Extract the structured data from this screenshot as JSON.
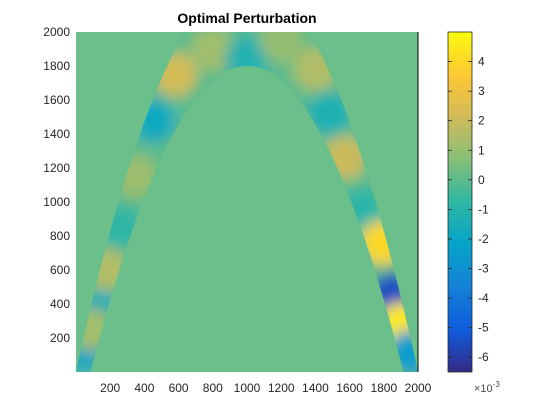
{
  "chart_data": {
    "type": "heatmap",
    "title": "Optimal Perturbation",
    "xlabel": "",
    "ylabel": "",
    "xlim": [
      0,
      2000
    ],
    "ylim": [
      0,
      2000
    ],
    "x_ticks": [
      200,
      400,
      600,
      800,
      1000,
      1200,
      1400,
      1600,
      1800,
      2000
    ],
    "y_ticks": [
      200,
      400,
      600,
      800,
      1000,
      1200,
      1400,
      1600,
      1800,
      2000
    ],
    "grid": false,
    "background_value": 0,
    "band": {
      "shape": "inverted parabola",
      "outer_edge_peak": [
        1000,
        2300
      ],
      "outer_edge_base": [
        [
          0,
          0
        ],
        [
          2000,
          0
        ]
      ],
      "inner_edge_peak": [
        1000,
        1800
      ],
      "inner_edge_base": [
        [
          85,
          0
        ],
        [
          1915,
          0
        ]
      ]
    },
    "blobs": [
      {
        "x": 40,
        "y": 130,
        "value": -2.0
      },
      {
        "x": 135,
        "y": 380,
        "value": -1.5
      },
      {
        "x": 90,
        "y": 250,
        "value": 1.2
      },
      {
        "x": 185,
        "y": 600,
        "value": 1.5
      },
      {
        "x": 255,
        "y": 850,
        "value": -0.8
      },
      {
        "x": 350,
        "y": 1150,
        "value": 1.1
      },
      {
        "x": 455,
        "y": 1480,
        "value": -1.8
      },
      {
        "x": 580,
        "y": 1750,
        "value": 2.2
      },
      {
        "x": 800,
        "y": 1900,
        "value": 1.2
      },
      {
        "x": 1000,
        "y": 1850,
        "value": -1.2
      },
      {
        "x": 1200,
        "y": 1950,
        "value": 1.0
      },
      {
        "x": 1400,
        "y": 1780,
        "value": 1.5
      },
      {
        "x": 1480,
        "y": 1520,
        "value": -1.3
      },
      {
        "x": 1570,
        "y": 1260,
        "value": 2.0
      },
      {
        "x": 1680,
        "y": 950,
        "value": -0.9
      },
      {
        "x": 1790,
        "y": 760,
        "value": 4.0
      },
      {
        "x": 1850,
        "y": 450,
        "value": -5.5
      },
      {
        "x": 1900,
        "y": 280,
        "value": 4.5
      },
      {
        "x": 1955,
        "y": 120,
        "value": -2.5
      }
    ],
    "colorbar": {
      "colormap": "parula",
      "range": [
        -6.5,
        5.0
      ],
      "ticks": [
        -6,
        -5,
        -4,
        -3,
        -2,
        -1,
        0,
        1,
        2,
        3,
        4
      ],
      "exponent": "×10⁻³",
      "exponent_base": "×10",
      "exponent_power": "-3"
    }
  }
}
